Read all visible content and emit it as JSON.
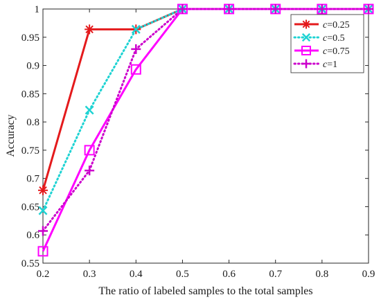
{
  "chart_data": {
    "type": "line",
    "title": "",
    "xlabel": "The ratio of labeled samples to the total samples",
    "ylabel": "Accuracy",
    "xlim": [
      0.2,
      0.9
    ],
    "ylim": [
      0.55,
      1.0
    ],
    "x_ticks": [
      "0.2",
      "0.3",
      "0.4",
      "0.5",
      "0.6",
      "0.7",
      "0.8",
      "0.9"
    ],
    "y_ticks": [
      "0.55",
      "0.6",
      "0.65",
      "0.7",
      "0.75",
      "0.8",
      "0.85",
      "0.9",
      "0.95",
      "1"
    ],
    "grid": false,
    "legend_position": "top-right",
    "x": [
      0.2,
      0.3,
      0.4,
      0.5,
      0.6,
      0.7,
      0.8,
      0.9
    ],
    "series": [
      {
        "name": "c=0.25",
        "legend_var": "c",
        "legend_value": "=0.25",
        "color": "#e41a1c",
        "line_style": "solid",
        "marker": "asterisk",
        "values": [
          0.679,
          0.964,
          0.964,
          1.0,
          1.0,
          1.0,
          1.0,
          1.0
        ]
      },
      {
        "name": "c=0.5",
        "legend_var": "c",
        "legend_value": "=0.5",
        "color": "#1fd3d3",
        "line_style": "dotted",
        "marker": "x",
        "values": [
          0.643,
          0.821,
          0.964,
          1.0,
          1.0,
          1.0,
          1.0,
          1.0
        ]
      },
      {
        "name": "c=0.75",
        "legend_var": "c",
        "legend_value": "=0.75",
        "color": "#ff00ff",
        "line_style": "solid",
        "marker": "square",
        "values": [
          0.571,
          0.75,
          0.893,
          1.0,
          1.0,
          1.0,
          1.0,
          1.0
        ]
      },
      {
        "name": "c=1",
        "legend_var": "c",
        "legend_value": "=1",
        "color": "#cc00cc",
        "line_style": "dotted",
        "marker": "plus",
        "values": [
          0.607,
          0.714,
          0.929,
          1.0,
          1.0,
          1.0,
          1.0,
          1.0
        ]
      }
    ]
  }
}
